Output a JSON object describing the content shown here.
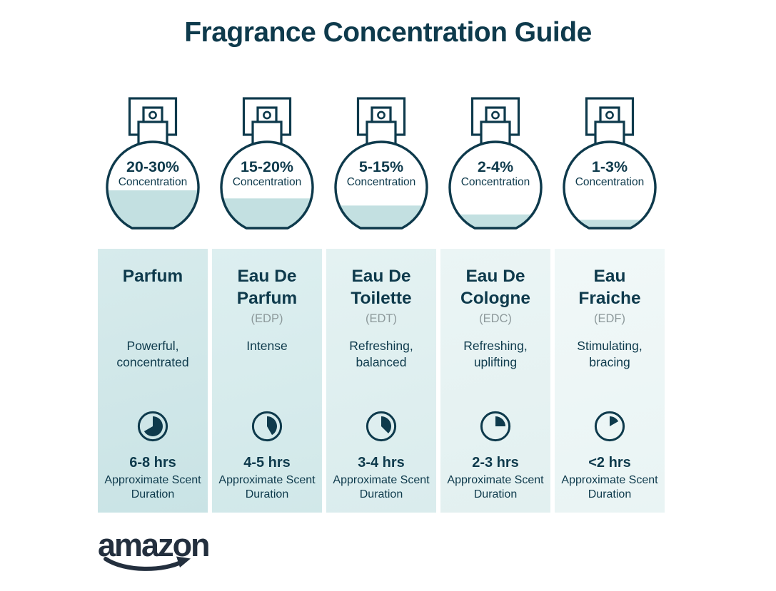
{
  "title": "Fragrance Concentration Guide",
  "palette": {
    "ink": "#0e3a4c",
    "liquid": "#c3e0e1",
    "muted": "#8d999b",
    "logo": "#232f3e"
  },
  "brand": {
    "logo_text": "amazon"
  },
  "shared": {
    "concentration_label": "Concentration",
    "duration_caption": "Approximate Scent Duration"
  },
  "columns": [
    {
      "name": "Parfum",
      "abbr": "",
      "concentration": "20-30%",
      "description": "Powerful, concentrated",
      "duration": "6-8 hrs",
      "fill_level_percent": 44,
      "clock_degrees": 240,
      "tint": [
        "#d7ebec",
        "#c9e3e5"
      ]
    },
    {
      "name": "Eau De Parfum",
      "abbr": "(EDP)",
      "concentration": "15-20%",
      "description": "Intense",
      "duration": "4-5 hrs",
      "fill_level_percent": 35,
      "clock_degrees": 150,
      "tint": [
        "#ddeff0",
        "#d1e8e9"
      ]
    },
    {
      "name": "Eau De Toilette",
      "abbr": "(EDT)",
      "concentration": "5-15%",
      "description": "Refreshing, balanced",
      "duration": "3-4 hrs",
      "fill_level_percent": 27,
      "clock_degrees": 135,
      "tint": [
        "#e4f2f2",
        "#daeced"
      ]
    },
    {
      "name": "Eau De Cologne",
      "abbr": "(EDC)",
      "concentration": "2-4%",
      "description": "Refreshing, uplifting",
      "duration": "2-3 hrs",
      "fill_level_percent": 17,
      "clock_degrees": 90,
      "tint": [
        "#ebf5f5",
        "#e2f0f0"
      ]
    },
    {
      "name": "Eau Fraiche",
      "abbr": "(EDF)",
      "concentration": "1-3%",
      "description": "Stimulating, bracing",
      "duration": "<2 hrs",
      "fill_level_percent": 11,
      "clock_degrees": 60,
      "tint": [
        "#f1f8f8",
        "#e9f4f4"
      ]
    }
  ]
}
